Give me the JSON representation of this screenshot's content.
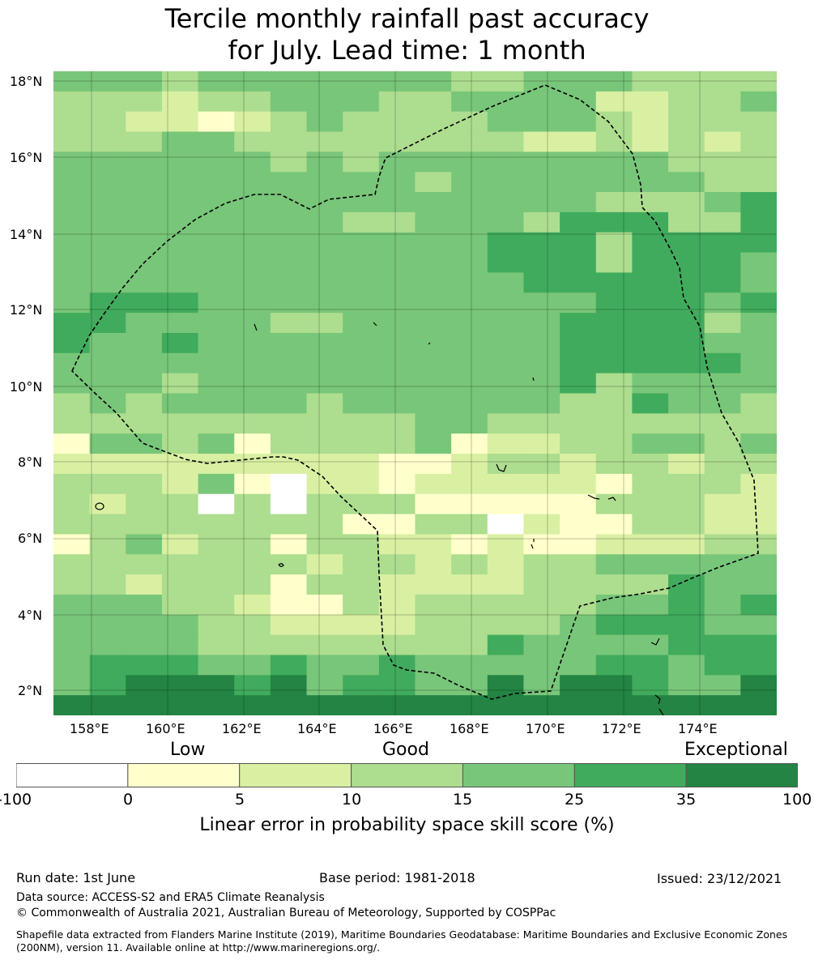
{
  "title": {
    "line1": "Tercile monthly rainfall past accuracy",
    "line2": "for July. Lead time: 1 month"
  },
  "map": {
    "lat_labels": [
      "18°N",
      "16°N",
      "14°N",
      "12°N",
      "10°N",
      "8°N",
      "6°N",
      "4°N",
      "2°N"
    ],
    "lon_labels": [
      "158°E",
      "160°E",
      "162°E",
      "164°E",
      "166°E",
      "168°E",
      "170°E",
      "172°E",
      "174°E"
    ],
    "legend_colors": [
      "#ffffff",
      "#ffffcc",
      "#d9f0a3",
      "#addd8e",
      "#78c679",
      "#41ab5d",
      "#238443"
    ],
    "grid": [
      "44434444444334443333",
      "33323344433444422334",
      "33221234333344432333",
      "33344333333332232323",
      "44444434344444444333",
      "44444444443444444433",
      "44444444444444433345",
      "44444444334443555335",
      "44444444444455535555",
      "44444444444455535554",
      "44444444444445555554",
      "45554444444444455545",
      "55444433444444555534",
      "54454444444444555544",
      "44444444444444555554",
      "44434444444444534444",
      "34344443444444335443",
      "33333333334433333333",
      "14434133334122334434",
      "22222222211233233233",
      "33324102212222213332",
      "32330303331111133322",
      "33333333113302113322",
      "13423313322121122233",
      "33333332332323344444",
      "33233313322223333544",
      "44433211323333344545",
      "44443322223333455544",
      "44443333333354444555",
      "45554454454444455455",
      "45666564554464665446",
      "66666666666666666666"
    ]
  },
  "colorbar": {
    "category_low": "Low",
    "category_good": "Good",
    "category_exceptional": "Exceptional",
    "ticks": [
      "-100",
      "0",
      "5",
      "10",
      "15",
      "25",
      "35",
      "100"
    ],
    "label": "Linear error in probability space skill score (%)"
  },
  "footer": {
    "run_date": "Run date: 1st June",
    "base_period": "Base period: 1981-2018",
    "issued": "Issued: 23/12/2021",
    "data_source": "Data source: ACCESS-S2 and ERA5 Climate Reanalysis",
    "copyright": "© Commonwealth of Australia 2021, Australian Bureau of Meteorology, Supported by COSPPac",
    "shapefile_note": "Shapefile data extracted from Flanders Marine Institute (2019), Maritime Boundaries Geodatabase: Maritime Boundaries and Exclusive Economic Zones (200NM), version 11. Available online at http://www.marineregions.org/."
  }
}
